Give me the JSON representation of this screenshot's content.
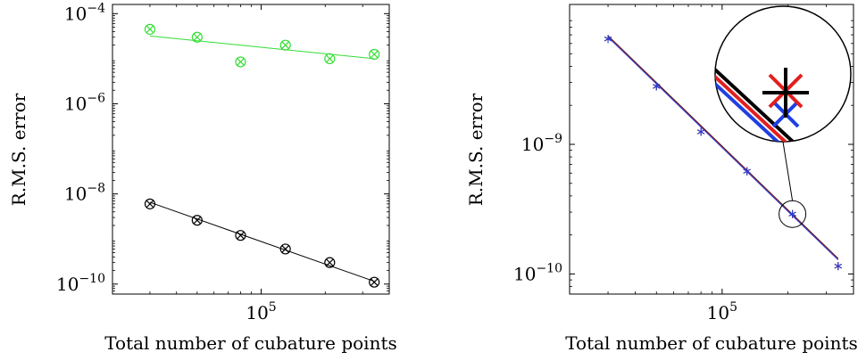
{
  "chart_data": [
    {
      "type": "scatter",
      "xlabel": "Total number of cubature points",
      "ylabel": "R.M.S. error",
      "xscale": "log",
      "yscale": "log",
      "xlim": [
        20000,
        400000
      ],
      "ylim": [
        6e-11,
        0.00016
      ],
      "xticks": [
        {
          "value": 100000,
          "base": "10",
          "exp": "5"
        }
      ],
      "yticks": [
        {
          "value": 0.0001,
          "base": "10",
          "exp": "−4"
        },
        {
          "value": 1e-06,
          "base": "10",
          "exp": "−6"
        },
        {
          "value": 1e-08,
          "base": "10",
          "exp": "−8"
        },
        {
          "value": 1e-10,
          "base": "10",
          "exp": "−10"
        }
      ],
      "grid": false,
      "series": [
        {
          "marker": "otimes",
          "color": "#33dd33",
          "x": [
            30000,
            50000,
            80000,
            130000,
            210000,
            340000
          ],
          "y": [
            4.5e-05,
            3e-05,
            8.5e-06,
            2e-05,
            1e-05,
            1.25e-05
          ],
          "fit": [
            [
              30000,
              3.2e-05
            ],
            [
              340000,
              1e-05
            ]
          ]
        },
        {
          "marker": "otimes",
          "color": "#000000",
          "x": [
            30000,
            50000,
            80000,
            130000,
            210000,
            340000
          ],
          "y": [
            6e-09,
            2.6e-09,
            1.2e-09,
            6e-10,
            3e-10,
            1.1e-10
          ],
          "fit": [
            [
              30000,
              6.5e-09
            ],
            [
              340000,
              1.15e-10
            ]
          ]
        }
      ]
    },
    {
      "type": "scatter",
      "xlabel": "Total number of cubature points",
      "ylabel": "R.M.S. error",
      "xscale": "log",
      "yscale": "log",
      "xlim": [
        20000,
        400000
      ],
      "ylim": [
        7e-11,
        1.2e-08
      ],
      "xticks": [
        {
          "value": 100000,
          "base": "10",
          "exp": "5"
        }
      ],
      "yticks": [
        {
          "value": 1e-09,
          "base": "10",
          "exp": "−9"
        },
        {
          "value": 1e-10,
          "base": "10",
          "exp": "−10"
        }
      ],
      "grid": false,
      "series": [
        {
          "marker": "asterisk",
          "color": "#000000",
          "x": [
            30000,
            50000,
            80000,
            130000,
            210000,
            340000
          ],
          "y": [
            6.5e-09,
            2.8e-09,
            1.25e-09,
            6.2e-10,
            2.9e-10,
            1.15e-10
          ],
          "fit": [
            [
              30000,
              6.8e-09
            ],
            [
              340000,
              1.3e-10
            ]
          ]
        },
        {
          "marker": "asterisk",
          "color": "#e21f1f",
          "x": [
            30000,
            50000,
            80000,
            130000,
            210000,
            340000
          ],
          "y": [
            6.5e-09,
            2.8e-09,
            1.25e-09,
            6.2e-10,
            2.9e-10,
            1.15e-10
          ],
          "fit": [
            [
              30000,
              6.8e-09
            ],
            [
              340000,
              1.3e-10
            ]
          ]
        },
        {
          "marker": "asterisk",
          "color": "#1f3fe2",
          "x": [
            30000,
            50000,
            80000,
            130000,
            210000,
            340000
          ],
          "y": [
            6.5e-09,
            2.8e-09,
            1.25e-09,
            6.2e-10,
            2.9e-10,
            1.15e-10
          ],
          "fit": [
            [
              30000,
              6.8e-09
            ],
            [
              340000,
              1.3e-10
            ]
          ]
        }
      ],
      "inset": {
        "zoom_x": 210000,
        "zoom_y": 2.9e-10
      }
    }
  ]
}
